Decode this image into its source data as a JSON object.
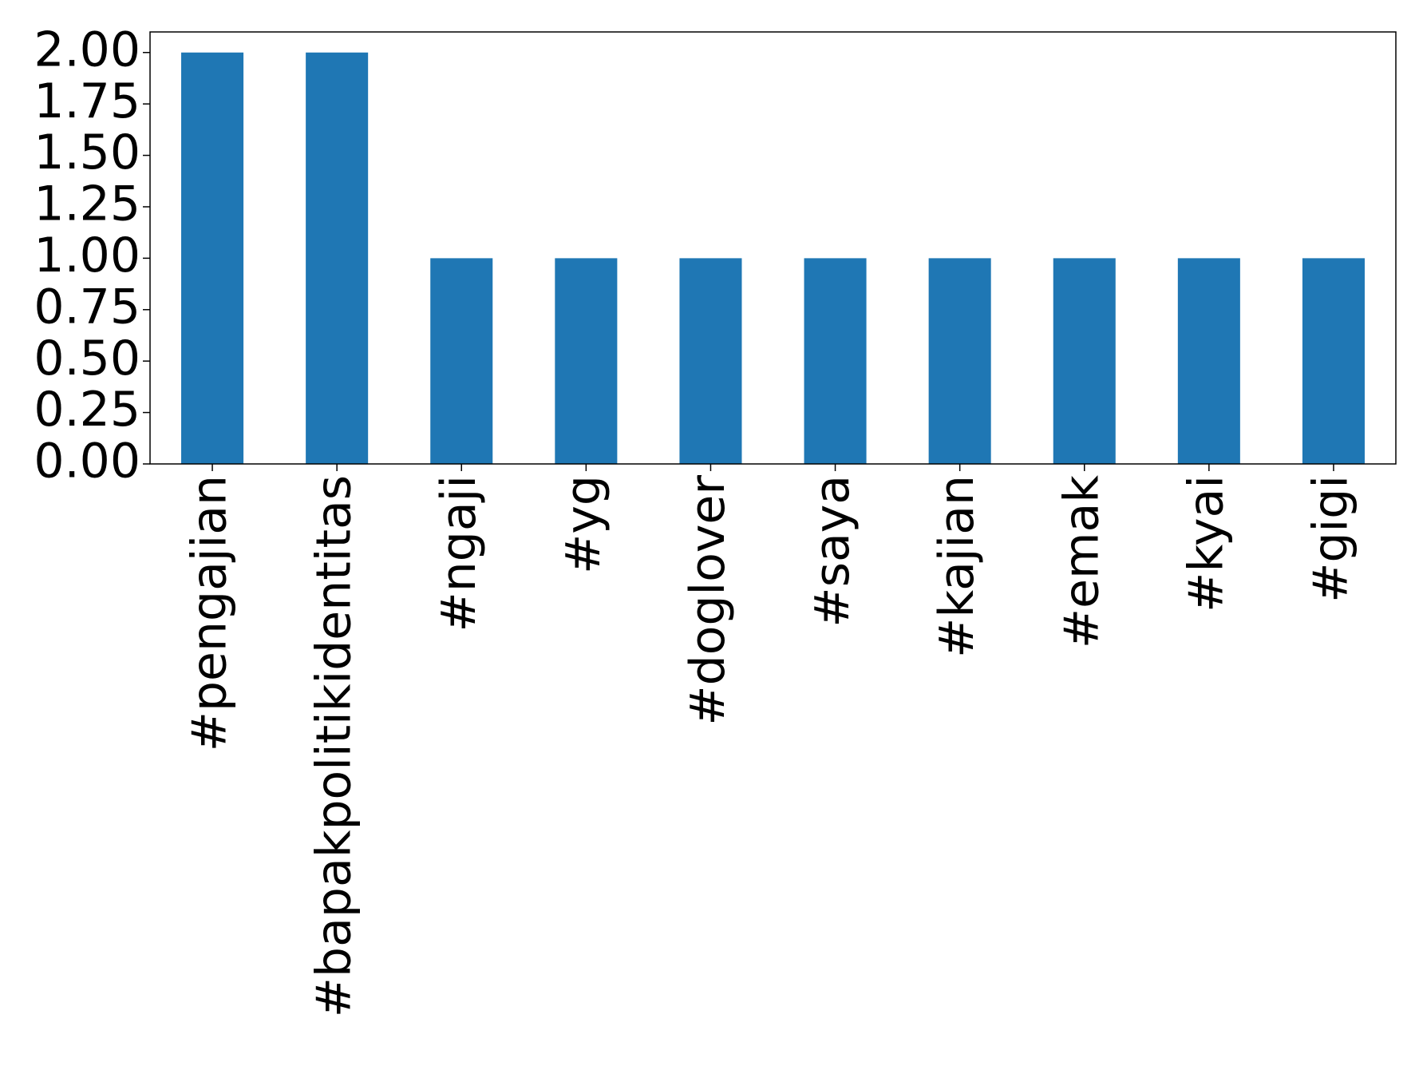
{
  "chart_data": {
    "type": "bar",
    "categories": [
      "#pengajian",
      "#bapakpolitikidentitas",
      "#ngaji",
      "#yg",
      "#doglover",
      "#saya",
      "#kajian",
      "#emak",
      "#kyai",
      "#gigi"
    ],
    "values": [
      2,
      2,
      1,
      1,
      1,
      1,
      1,
      1,
      1,
      1
    ],
    "color": "#1f77b4",
    "ylim": [
      0,
      2.1
    ],
    "yticks": [
      {
        "value": 0,
        "label": "0.00"
      },
      {
        "value": 0.25,
        "label": "0.25"
      },
      {
        "value": 0.5,
        "label": "0.50"
      },
      {
        "value": 0.75,
        "label": "0.75"
      },
      {
        "value": 1,
        "label": "1.00"
      },
      {
        "value": 1.25,
        "label": "1.25"
      },
      {
        "value": 1.5,
        "label": "1.50"
      },
      {
        "value": 1.75,
        "label": "1.75"
      },
      {
        "value": 2,
        "label": "2.00"
      }
    ]
  }
}
